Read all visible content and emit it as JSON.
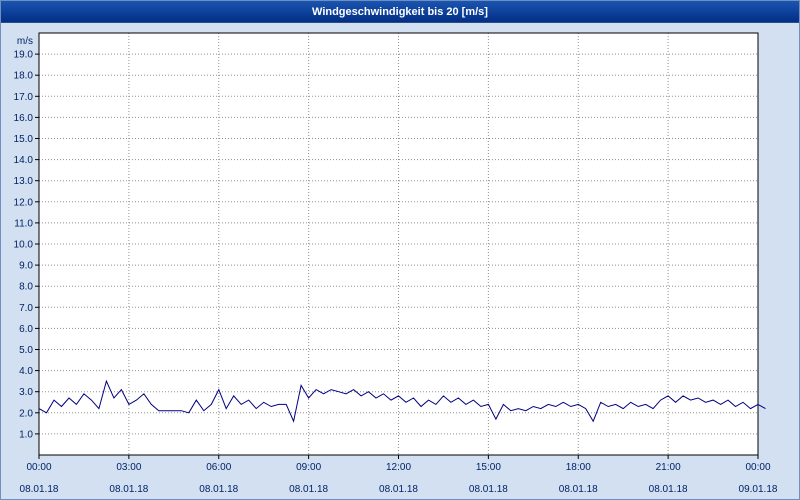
{
  "window": {
    "title": "Windgeschwindigkeit bis 20 [m/s]"
  },
  "colors": {
    "background": "#d2e0f2",
    "title_bar": "#032e86",
    "title_text": "#ffffff",
    "plot_background": "#ffffff",
    "plot_border": "#000000",
    "grid": "#909090",
    "axis_text": "#002366",
    "line": "#000080"
  },
  "chart_data": {
    "type": "line",
    "title": "Windgeschwindigkeit bis 20 [m/s]",
    "xlabel": "",
    "ylabel": "m/s",
    "ylim": [
      0,
      20
    ],
    "grid": true,
    "legend": "none",
    "y_ticks": [
      "19.0",
      "18.0",
      "17.0",
      "16.0",
      "15.0",
      "14.0",
      "13.0",
      "12.0",
      "11.0",
      "10.0",
      "9.0",
      "8.0",
      "7.0",
      "6.0",
      "5.0",
      "4.0",
      "3.0",
      "2.0",
      "1.0"
    ],
    "x_ticks": [
      {
        "minutes": 0,
        "time": "00:00",
        "date": "08.01.18"
      },
      {
        "minutes": 180,
        "time": "03:00",
        "date": "08.01.18"
      },
      {
        "minutes": 360,
        "time": "06:00",
        "date": "08.01.18"
      },
      {
        "minutes": 540,
        "time": "09:00",
        "date": "08.01.18"
      },
      {
        "minutes": 720,
        "time": "12:00",
        "date": "08.01.18"
      },
      {
        "minutes": 900,
        "time": "15:00",
        "date": "08.01.18"
      },
      {
        "minutes": 1080,
        "time": "18:00",
        "date": "08.01.18"
      },
      {
        "minutes": 1260,
        "time": "21:00",
        "date": "08.01.18"
      },
      {
        "minutes": 1440,
        "time": "00:00",
        "date": "09.01.18"
      }
    ],
    "x_total_minutes": 1440,
    "sample_interval_minutes": 15,
    "series": [
      {
        "name": "Windgeschwindigkeit",
        "unit": "m/s",
        "values": [
          2.2,
          2.0,
          2.6,
          2.3,
          2.7,
          2.4,
          2.9,
          2.6,
          2.2,
          3.5,
          2.7,
          3.1,
          2.4,
          2.6,
          2.9,
          2.4,
          2.1,
          2.1,
          2.1,
          2.1,
          2.0,
          2.6,
          2.1,
          2.4,
          3.1,
          2.2,
          2.8,
          2.4,
          2.6,
          2.2,
          2.5,
          2.3,
          2.4,
          2.4,
          1.6,
          3.3,
          2.7,
          3.1,
          2.9,
          3.1,
          3.0,
          2.9,
          3.1,
          2.8,
          3.0,
          2.7,
          2.9,
          2.6,
          2.8,
          2.5,
          2.7,
          2.3,
          2.6,
          2.4,
          2.8,
          2.5,
          2.7,
          2.4,
          2.6,
          2.3,
          2.4,
          1.7,
          2.4,
          2.1,
          2.2,
          2.1,
          2.3,
          2.2,
          2.4,
          2.3,
          2.5,
          2.3,
          2.4,
          2.2,
          1.6,
          2.5,
          2.3,
          2.4,
          2.2,
          2.5,
          2.3,
          2.4,
          2.2,
          2.6,
          2.8,
          2.5,
          2.8,
          2.6,
          2.7,
          2.5,
          2.6,
          2.4,
          2.6,
          2.3,
          2.5,
          2.2,
          2.4,
          2.2
        ]
      }
    ]
  }
}
